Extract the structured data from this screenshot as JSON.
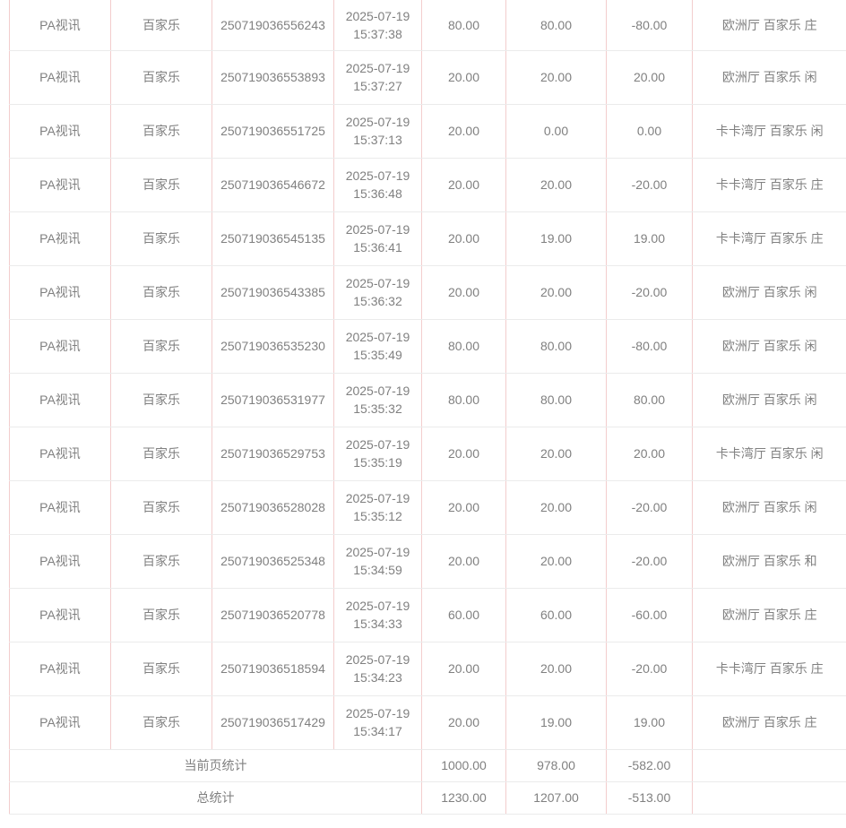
{
  "table": {
    "rows": [
      {
        "platform": "PA视讯",
        "game": "百家乐",
        "order_no": "250719036556243",
        "time": "2025-07-19 15:37:38",
        "bet_amount": "80.00",
        "valid_amount": "80.00",
        "win_loss": "-80.00",
        "detail": "欧洲厅 百家乐 庄"
      },
      {
        "platform": "PA视讯",
        "game": "百家乐",
        "order_no": "250719036553893",
        "time": "2025-07-19 15:37:27",
        "bet_amount": "20.00",
        "valid_amount": "20.00",
        "win_loss": "20.00",
        "detail": "欧洲厅 百家乐 闲"
      },
      {
        "platform": "PA视讯",
        "game": "百家乐",
        "order_no": "250719036551725",
        "time": "2025-07-19 15:37:13",
        "bet_amount": "20.00",
        "valid_amount": "0.00",
        "win_loss": "0.00",
        "detail": "卡卡湾厅 百家乐 闲"
      },
      {
        "platform": "PA视讯",
        "game": "百家乐",
        "order_no": "250719036546672",
        "time": "2025-07-19 15:36:48",
        "bet_amount": "20.00",
        "valid_amount": "20.00",
        "win_loss": "-20.00",
        "detail": "卡卡湾厅 百家乐 庄"
      },
      {
        "platform": "PA视讯",
        "game": "百家乐",
        "order_no": "250719036545135",
        "time": "2025-07-19 15:36:41",
        "bet_amount": "20.00",
        "valid_amount": "19.00",
        "win_loss": "19.00",
        "detail": "卡卡湾厅 百家乐 庄"
      },
      {
        "platform": "PA视讯",
        "game": "百家乐",
        "order_no": "250719036543385",
        "time": "2025-07-19 15:36:32",
        "bet_amount": "20.00",
        "valid_amount": "20.00",
        "win_loss": "-20.00",
        "detail": "欧洲厅 百家乐 闲"
      },
      {
        "platform": "PA视讯",
        "game": "百家乐",
        "order_no": "250719036535230",
        "time": "2025-07-19 15:35:49",
        "bet_amount": "80.00",
        "valid_amount": "80.00",
        "win_loss": "-80.00",
        "detail": "欧洲厅 百家乐 闲"
      },
      {
        "platform": "PA视讯",
        "game": "百家乐",
        "order_no": "250719036531977",
        "time": "2025-07-19 15:35:32",
        "bet_amount": "80.00",
        "valid_amount": "80.00",
        "win_loss": "80.00",
        "detail": "欧洲厅 百家乐 闲"
      },
      {
        "platform": "PA视讯",
        "game": "百家乐",
        "order_no": "250719036529753",
        "time": "2025-07-19 15:35:19",
        "bet_amount": "20.00",
        "valid_amount": "20.00",
        "win_loss": "20.00",
        "detail": "卡卡湾厅 百家乐 闲"
      },
      {
        "platform": "PA视讯",
        "game": "百家乐",
        "order_no": "250719036528028",
        "time": "2025-07-19 15:35:12",
        "bet_amount": "20.00",
        "valid_amount": "20.00",
        "win_loss": "-20.00",
        "detail": "欧洲厅 百家乐 闲"
      },
      {
        "platform": "PA视讯",
        "game": "百家乐",
        "order_no": "250719036525348",
        "time": "2025-07-19 15:34:59",
        "bet_amount": "20.00",
        "valid_amount": "20.00",
        "win_loss": "-20.00",
        "detail": "欧洲厅 百家乐 和"
      },
      {
        "platform": "PA视讯",
        "game": "百家乐",
        "order_no": "250719036520778",
        "time": "2025-07-19 15:34:33",
        "bet_amount": "60.00",
        "valid_amount": "60.00",
        "win_loss": "-60.00",
        "detail": "欧洲厅 百家乐 庄"
      },
      {
        "platform": "PA视讯",
        "game": "百家乐",
        "order_no": "250719036518594",
        "time": "2025-07-19 15:34:23",
        "bet_amount": "20.00",
        "valid_amount": "20.00",
        "win_loss": "-20.00",
        "detail": "卡卡湾厅 百家乐 庄"
      },
      {
        "platform": "PA视讯",
        "game": "百家乐",
        "order_no": "250719036517429",
        "time": "2025-07-19 15:34:17",
        "bet_amount": "20.00",
        "valid_amount": "19.00",
        "win_loss": "19.00",
        "detail": "欧洲厅 百家乐 庄"
      }
    ],
    "summary": {
      "current_page": {
        "label": "当前页统计",
        "bet_amount": "1000.00",
        "valid_amount": "978.00",
        "win_loss": "-582.00",
        "detail": ""
      },
      "total": {
        "label": "总统计",
        "bet_amount": "1230.00",
        "valid_amount": "1207.00",
        "win_loss": "-513.00",
        "detail": ""
      }
    }
  },
  "colors": {
    "vertical_border": "#f3cdcd",
    "horizontal_border": "#ebebeb",
    "text": "#808080",
    "background": "#ffffff"
  }
}
